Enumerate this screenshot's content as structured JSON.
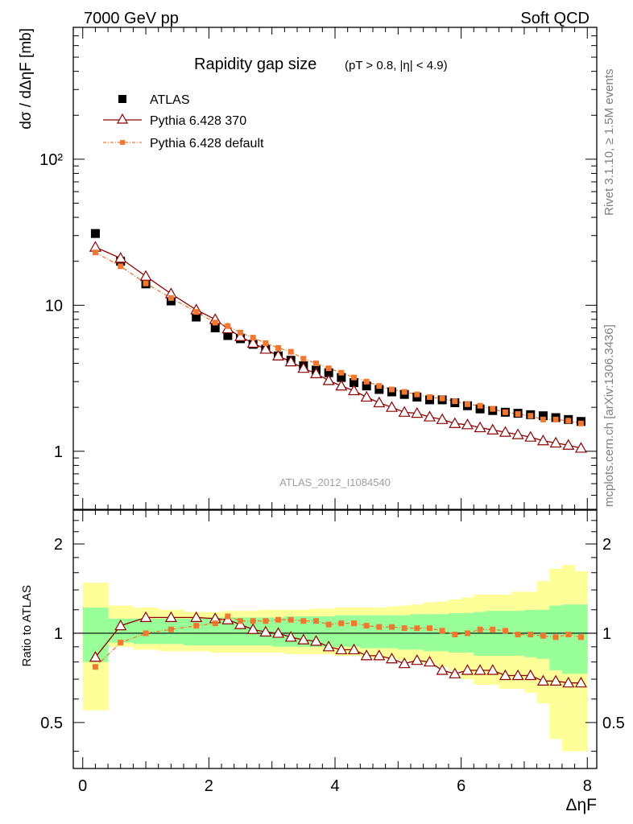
{
  "header": {
    "left": "7000 GeV pp",
    "right": "Soft QCD"
  },
  "side_text": {
    "rivet": "Rivet 3.1.10, ≥ 1.5M events",
    "mcplots": "mcplots.cern.ch [arXiv:1306.3436]"
  },
  "watermark": "ATLAS_2012_I1084540",
  "chart_data": [
    {
      "type": "scatter",
      "panel": "main",
      "title": "Rapidity gap size",
      "subtitle": "(pT > 0.8, |η| < 4.9)",
      "ylabel": "dσ / dΔηF [mb]",
      "xlabel": "",
      "yscale": "log",
      "xlim": [
        -0.15,
        8.15
      ],
      "ylim": [
        0.4,
        800
      ],
      "ytick_labels": [
        "1",
        "10",
        "10²"
      ],
      "legend_position": "top-left",
      "x": [
        0.2,
        0.6,
        1.0,
        1.4,
        1.8,
        2.1,
        2.3,
        2.5,
        2.7,
        2.9,
        3.1,
        3.3,
        3.5,
        3.7,
        3.9,
        4.1,
        4.3,
        4.5,
        4.7,
        4.9,
        5.1,
        5.3,
        5.5,
        5.7,
        5.9,
        6.1,
        6.3,
        6.5,
        6.7,
        6.9,
        7.1,
        7.3,
        7.5,
        7.7,
        7.9
      ],
      "series": [
        {
          "name": "ATLAS",
          "color": "#000000",
          "marker": "square",
          "values": [
            31,
            20,
            14,
            10.7,
            8.3,
            7.0,
            6.2,
            5.9,
            5.4,
            5.0,
            4.5,
            4.2,
            3.85,
            3.6,
            3.45,
            3.2,
            2.95,
            2.8,
            2.65,
            2.55,
            2.45,
            2.35,
            2.25,
            2.25,
            2.15,
            2.05,
            1.95,
            1.9,
            1.85,
            1.82,
            1.78,
            1.75,
            1.7,
            1.65,
            1.6
          ]
        },
        {
          "name": "Pythia 6.428 370",
          "color": "#8b0000",
          "marker": "open-triangle",
          "values": [
            25,
            21,
            15.8,
            12,
            9.3,
            8.0,
            6.9,
            6.1,
            5.5,
            5.0,
            4.5,
            4.1,
            3.7,
            3.4,
            3.05,
            2.8,
            2.6,
            2.35,
            2.15,
            2.0,
            1.85,
            1.82,
            1.72,
            1.65,
            1.55,
            1.52,
            1.45,
            1.4,
            1.35,
            1.3,
            1.25,
            1.18,
            1.14,
            1.1,
            1.05
          ]
        },
        {
          "name": "Pythia 6.428 default",
          "color": "#f07830",
          "marker": "small-square",
          "values": [
            23,
            18.5,
            14.1,
            11.2,
            9.0,
            7.6,
            7.2,
            6.5,
            6.0,
            5.5,
            5.1,
            4.8,
            4.3,
            4.0,
            3.7,
            3.45,
            3.2,
            3.0,
            2.8,
            2.65,
            2.55,
            2.45,
            2.35,
            2.3,
            2.2,
            2.1,
            2.05,
            1.95,
            1.85,
            1.8,
            1.75,
            1.65,
            1.65,
            1.62,
            1.55
          ]
        }
      ]
    },
    {
      "type": "line",
      "panel": "ratio",
      "ylabel": "Ratio to ATLAS",
      "xlabel": "ΔηF",
      "yscale": "log",
      "xlim": [
        -0.15,
        8.15
      ],
      "ylim": [
        0.35,
        2.6
      ],
      "ytick_labels": [
        "0.5",
        "1",
        "2"
      ],
      "xtick_labels": [
        "0",
        "2",
        "4",
        "6",
        "8"
      ],
      "reference": 1.0,
      "x": [
        0.2,
        0.6,
        1.0,
        1.4,
        1.8,
        2.1,
        2.3,
        2.5,
        2.7,
        2.9,
        3.1,
        3.3,
        3.5,
        3.7,
        3.9,
        4.1,
        4.3,
        4.5,
        4.7,
        4.9,
        5.1,
        5.3,
        5.5,
        5.7,
        5.9,
        6.1,
        6.3,
        6.5,
        6.7,
        6.9,
        7.1,
        7.3,
        7.5,
        7.7,
        7.9
      ],
      "bin_edges": [
        0.0,
        0.4,
        0.8,
        1.2,
        1.6,
        2.0,
        2.2,
        2.4,
        2.6,
        2.8,
        3.0,
        3.2,
        3.4,
        3.6,
        3.8,
        4.0,
        4.2,
        4.4,
        4.6,
        4.8,
        5.0,
        5.2,
        5.4,
        5.6,
        5.8,
        6.0,
        6.2,
        6.4,
        6.6,
        6.8,
        7.0,
        7.2,
        7.4,
        7.6,
        7.8,
        8.0
      ],
      "bands": [
        {
          "name": "total uncertainty",
          "color": "#ffff99",
          "lower": [
            0.55,
            0.9,
            0.88,
            0.87,
            0.87,
            0.86,
            0.86,
            0.86,
            0.86,
            0.86,
            0.86,
            0.85,
            0.85,
            0.85,
            0.85,
            0.84,
            0.84,
            0.83,
            0.82,
            0.82,
            0.81,
            0.8,
            0.79,
            0.77,
            0.75,
            0.7,
            0.67,
            0.67,
            0.65,
            0.65,
            0.63,
            0.58,
            0.44,
            0.4,
            0.4
          ],
          "upper": [
            1.48,
            1.24,
            1.22,
            1.2,
            1.18,
            1.18,
            1.19,
            1.19,
            1.19,
            1.2,
            1.2,
            1.2,
            1.2,
            1.21,
            1.21,
            1.22,
            1.22,
            1.22,
            1.22,
            1.23,
            1.24,
            1.25,
            1.27,
            1.28,
            1.3,
            1.32,
            1.35,
            1.35,
            1.35,
            1.38,
            1.38,
            1.5,
            1.65,
            1.7,
            1.62
          ]
        },
        {
          "name": "statistical uncertainty",
          "color": "#99ff99",
          "lower": [
            0.8,
            0.93,
            0.92,
            0.92,
            0.91,
            0.91,
            0.91,
            0.91,
            0.91,
            0.91,
            0.9,
            0.9,
            0.9,
            0.9,
            0.9,
            0.9,
            0.9,
            0.89,
            0.89,
            0.89,
            0.88,
            0.88,
            0.87,
            0.87,
            0.86,
            0.86,
            0.84,
            0.84,
            0.84,
            0.84,
            0.83,
            0.82,
            0.75,
            0.73,
            0.73
          ],
          "upper": [
            1.22,
            1.12,
            1.12,
            1.12,
            1.12,
            1.13,
            1.13,
            1.13,
            1.13,
            1.13,
            1.13,
            1.14,
            1.14,
            1.14,
            1.14,
            1.15,
            1.15,
            1.15,
            1.15,
            1.15,
            1.15,
            1.16,
            1.16,
            1.16,
            1.17,
            1.17,
            1.18,
            1.19,
            1.19,
            1.19,
            1.2,
            1.2,
            1.24,
            1.25,
            1.25
          ]
        }
      ],
      "series": [
        {
          "name": "Pythia 6.428 370",
          "color": "#8b0000",
          "marker": "open-triangle",
          "values": [
            0.83,
            1.06,
            1.13,
            1.13,
            1.13,
            1.12,
            1.11,
            1.07,
            1.03,
            1.01,
            1.0,
            0.97,
            0.95,
            0.94,
            0.9,
            0.88,
            0.88,
            0.84,
            0.84,
            0.82,
            0.79,
            0.81,
            0.8,
            0.75,
            0.73,
            0.75,
            0.75,
            0.75,
            0.72,
            0.72,
            0.72,
            0.69,
            0.69,
            0.68,
            0.68
          ]
        },
        {
          "name": "Pythia 6.428 default",
          "color": "#f07830",
          "marker": "small-square",
          "values": [
            0.77,
            0.93,
            1.0,
            1.03,
            1.06,
            1.08,
            1.14,
            1.1,
            1.1,
            1.1,
            1.11,
            1.11,
            1.1,
            1.1,
            1.07,
            1.08,
            1.08,
            1.06,
            1.05,
            1.05,
            1.04,
            1.04,
            1.04,
            1.02,
            0.99,
            1.0,
            1.03,
            1.03,
            1.02,
            0.99,
            0.99,
            0.98,
            0.97,
            0.99,
            0.97
          ]
        }
      ]
    }
  ]
}
